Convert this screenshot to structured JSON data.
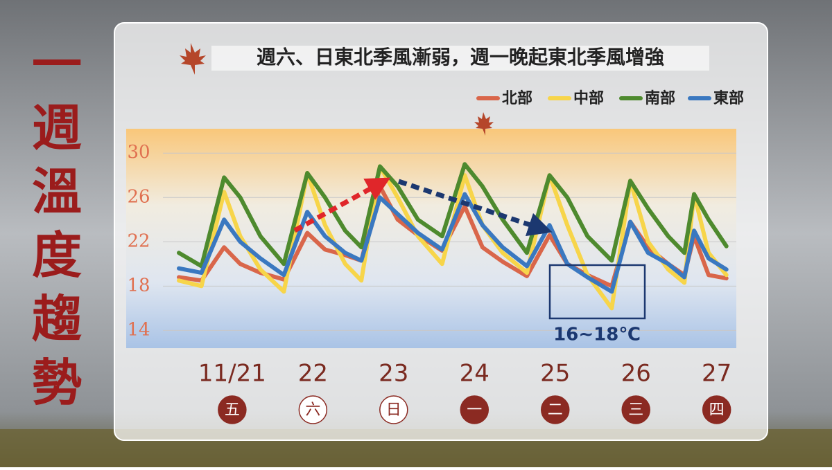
{
  "side_title": "一週溫度趨勢",
  "chart_data": {
    "type": "line",
    "title": "週六、日東北季風漸弱，週一晚起東北季風增強",
    "annotation": "16~18℃",
    "x": [
      -0.66,
      -0.38,
      -0.1,
      0.1,
      0.35,
      0.64,
      0.93,
      1.15,
      1.4,
      1.6,
      1.83,
      2.05,
      2.3,
      2.6,
      2.88,
      3.1,
      3.35,
      3.65,
      3.93,
      4.15,
      4.4,
      4.7,
      4.93,
      5.15,
      5.4,
      5.6,
      5.72,
      5.9,
      6.12
    ],
    "series": [
      {
        "name": "北部",
        "color": "#d9664a",
        "values": [
          18.8,
          18.5,
          21.5,
          20.0,
          19.2,
          18.6,
          22.8,
          21.3,
          20.8,
          20.3,
          27.0,
          24.0,
          22.6,
          21.2,
          25.2,
          21.5,
          20.2,
          18.9,
          22.6,
          20.0,
          19.0,
          18.0,
          23.8,
          21.5,
          20.0,
          19.0,
          22.5,
          19.0,
          18.7
        ]
      },
      {
        "name": "中部",
        "color": "#f7d54a",
        "values": [
          18.5,
          18.0,
          26.5,
          22.5,
          19.5,
          17.5,
          28.2,
          23.5,
          20.0,
          18.5,
          28.8,
          26.0,
          22.5,
          20.0,
          28.0,
          23.5,
          21.0,
          19.2,
          28.0,
          23.5,
          19.0,
          16.0,
          27.5,
          22.0,
          19.5,
          18.3,
          26.3,
          21.0,
          19.0
        ]
      },
      {
        "name": "南部",
        "color": "#4e8a2e",
        "values": [
          21.0,
          19.8,
          27.8,
          26.0,
          22.5,
          20.0,
          28.2,
          26.0,
          23.0,
          21.5,
          28.8,
          27.0,
          24.0,
          22.5,
          29.0,
          27.0,
          24.0,
          21.0,
          28.0,
          26.0,
          22.5,
          20.3,
          27.5,
          25.0,
          22.5,
          21.0,
          26.3,
          24.0,
          21.6
        ]
      },
      {
        "name": "東部",
        "color": "#3a78c0",
        "values": [
          19.6,
          19.2,
          24.0,
          22.0,
          20.5,
          19.0,
          24.7,
          22.5,
          21.0,
          20.3,
          26.0,
          24.5,
          22.8,
          21.3,
          26.3,
          23.5,
          21.5,
          19.8,
          23.5,
          20.0,
          18.8,
          17.5,
          23.8,
          21.0,
          20.0,
          18.8,
          23.0,
          20.5,
          19.5
        ]
      }
    ],
    "xlim": [
      -0.66,
      6.14
    ],
    "xticks": [
      {
        "value": 0,
        "label": "11/21"
      },
      {
        "value": 1,
        "label": "22"
      },
      {
        "value": 2,
        "label": "23"
      },
      {
        "value": 3,
        "label": "24"
      },
      {
        "value": 4,
        "label": "25"
      },
      {
        "value": 5,
        "label": "26"
      },
      {
        "value": 6,
        "label": "27"
      }
    ],
    "weekdays": [
      "五",
      "六",
      "日",
      "一",
      "二",
      "三",
      "四"
    ],
    "weekday_fills": [
      "#8b2a22",
      "#ffffff",
      "#ffffff",
      "#8b2a22",
      "#8b2a22",
      "#8b2a22",
      "#8b2a22"
    ],
    "ylim": [
      12.4,
      32.2
    ],
    "yticks": [
      14,
      18,
      22,
      26,
      30
    ],
    "grid": true
  }
}
